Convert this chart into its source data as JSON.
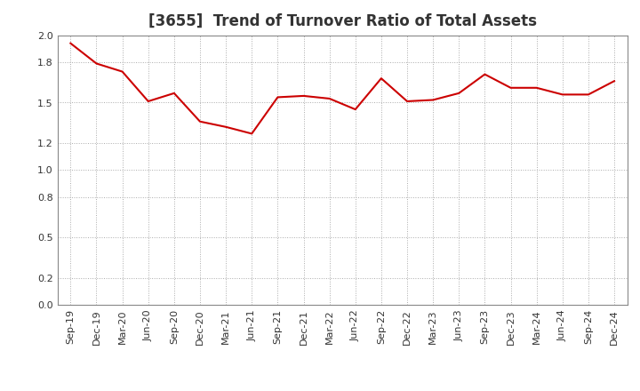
{
  "title": "[3655]  Trend of Turnover Ratio of Total Assets",
  "x_labels": [
    "Sep-19",
    "Dec-19",
    "Mar-20",
    "Jun-20",
    "Sep-20",
    "Dec-20",
    "Mar-21",
    "Jun-21",
    "Sep-21",
    "Dec-21",
    "Mar-22",
    "Jun-22",
    "Sep-22",
    "Dec-22",
    "Mar-23",
    "Jun-23",
    "Sep-23",
    "Dec-23",
    "Mar-24",
    "Jun-24",
    "Sep-24",
    "Dec-24"
  ],
  "y_values": [
    1.94,
    1.79,
    1.73,
    1.51,
    1.57,
    1.36,
    1.32,
    1.27,
    1.54,
    1.55,
    1.53,
    1.45,
    1.68,
    1.51,
    1.52,
    1.57,
    1.71,
    1.61,
    1.61,
    1.56,
    1.56,
    1.66
  ],
  "line_color": "#cc0000",
  "line_width": 1.5,
  "ylim": [
    0.0,
    2.0
  ],
  "yticks": [
    0.0,
    0.2,
    0.5,
    0.8,
    1.0,
    1.2,
    1.5,
    1.8,
    2.0
  ],
  "background_color": "#ffffff",
  "grid_color": "#aaaaaa",
  "title_fontsize": 12,
  "tick_fontsize": 8,
  "title_color": "#333333"
}
